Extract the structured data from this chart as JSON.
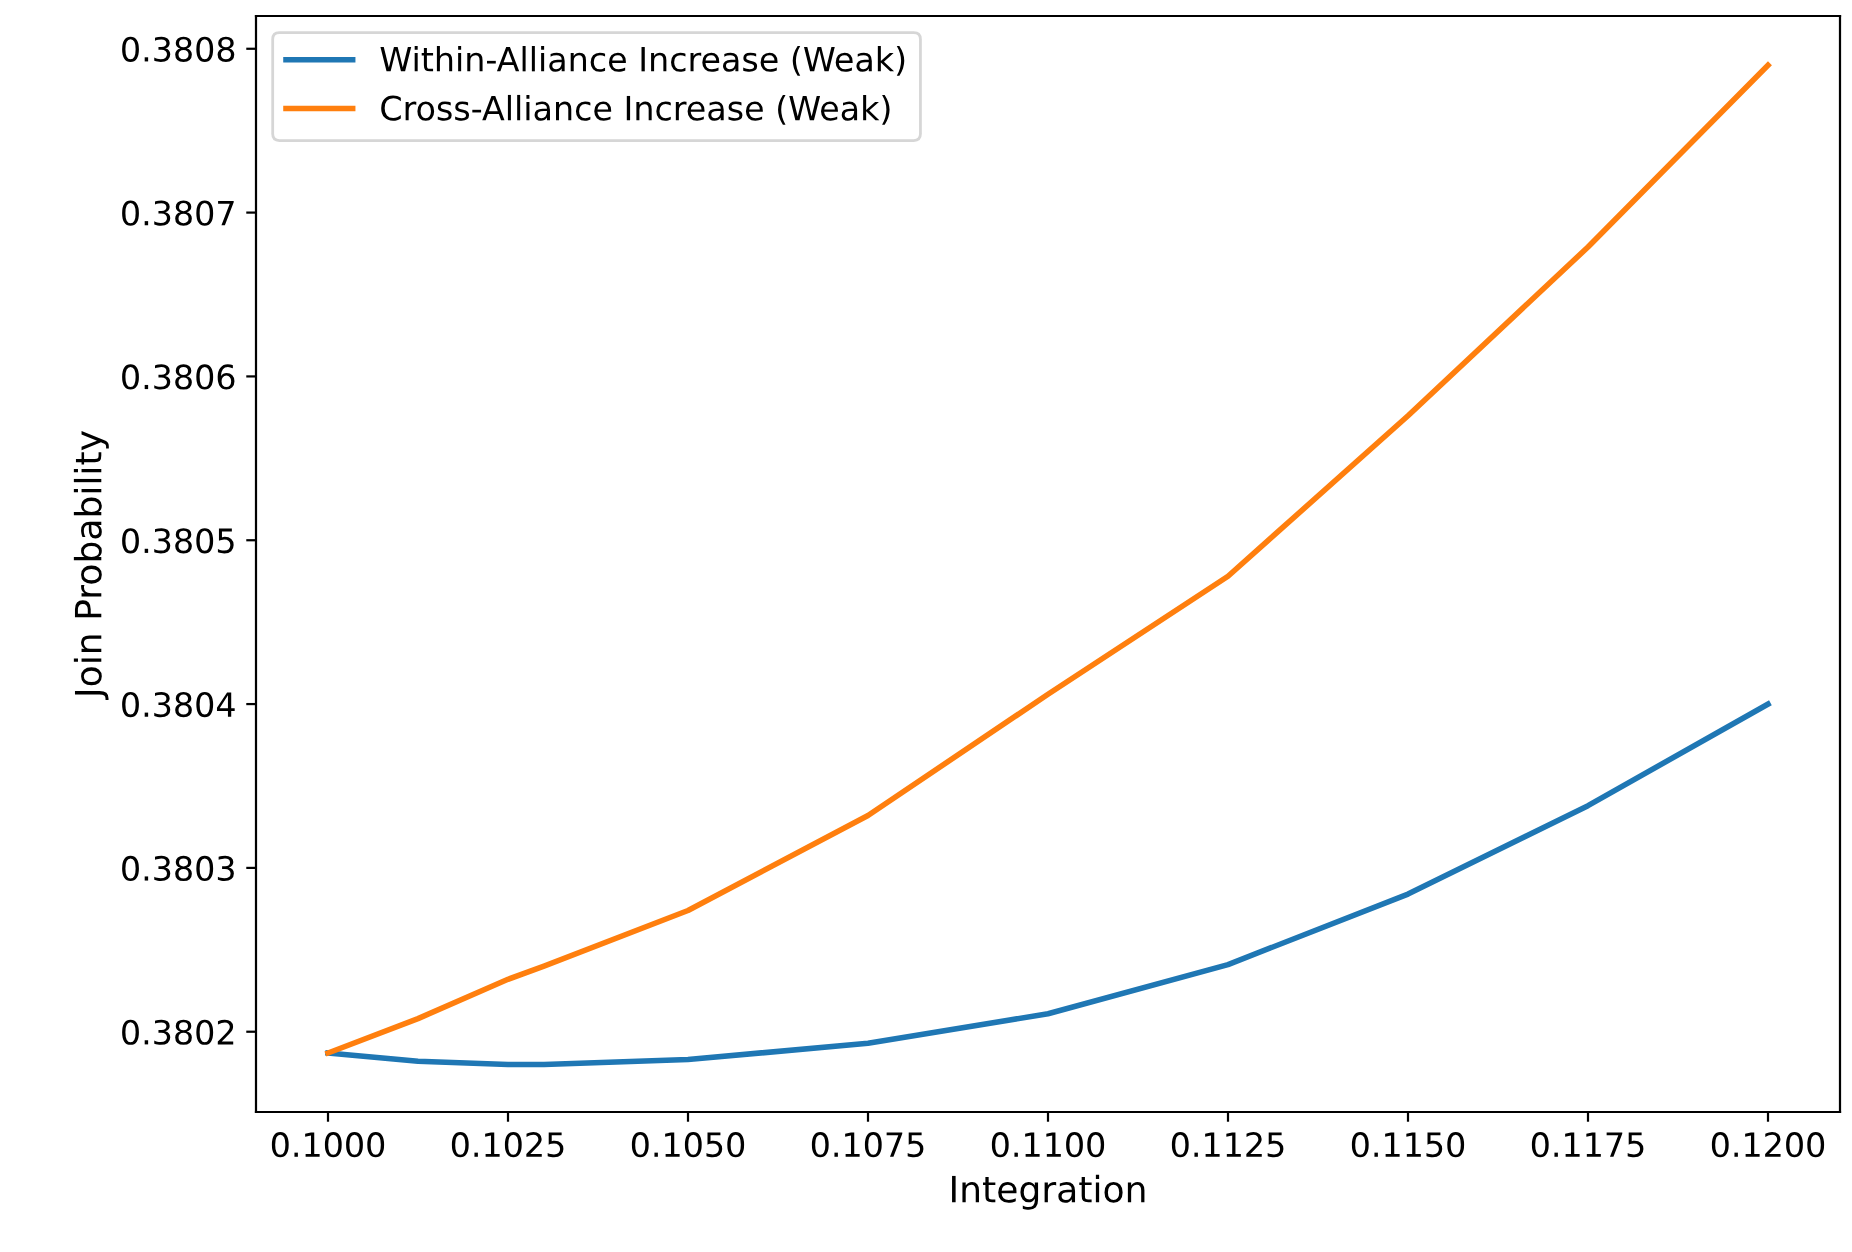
{
  "chart_data": {
    "type": "line",
    "xlabel": "Integration",
    "ylabel": "Join Probability",
    "x": [
      0.1,
      0.10125,
      0.1025,
      0.103,
      0.105,
      0.1075,
      0.11,
      0.1125,
      0.115,
      0.1175,
      0.12
    ],
    "series": [
      {
        "name": "Within-Alliance Increase (Weak)",
        "color": "#1f77b4",
        "values": [
          0.380187,
          0.380182,
          0.38018,
          0.38018,
          0.380183,
          0.380193,
          0.380211,
          0.380241,
          0.380284,
          0.380338,
          0.3804
        ]
      },
      {
        "name": "Cross-Alliance Increase (Weak)",
        "color": "#ff7f0e",
        "values": [
          0.380187,
          0.380208,
          0.380232,
          0.38024,
          0.380274,
          0.380332,
          0.380406,
          0.380478,
          0.380576,
          0.380679,
          0.38079
        ]
      }
    ],
    "xlim": [
      0.099,
      0.121
    ],
    "ylim": [
      0.380151,
      0.38082
    ],
    "xticks": [
      {
        "value": 0.1,
        "label": "0.1000"
      },
      {
        "value": 0.1025,
        "label": "0.1025"
      },
      {
        "value": 0.105,
        "label": "0.1050"
      },
      {
        "value": 0.1075,
        "label": "0.1075"
      },
      {
        "value": 0.11,
        "label": "0.1100"
      },
      {
        "value": 0.1125,
        "label": "0.1125"
      },
      {
        "value": 0.115,
        "label": "0.1150"
      },
      {
        "value": 0.1175,
        "label": "0.1175"
      },
      {
        "value": 0.12,
        "label": "0.1200"
      }
    ],
    "yticks": [
      0.3802,
      0.3803,
      0.3804,
      0.3805,
      0.3806,
      0.3807,
      0.3808
    ],
    "legend": "top left",
    "grid": false,
    "marker": "none",
    "line_style": "solid"
  }
}
